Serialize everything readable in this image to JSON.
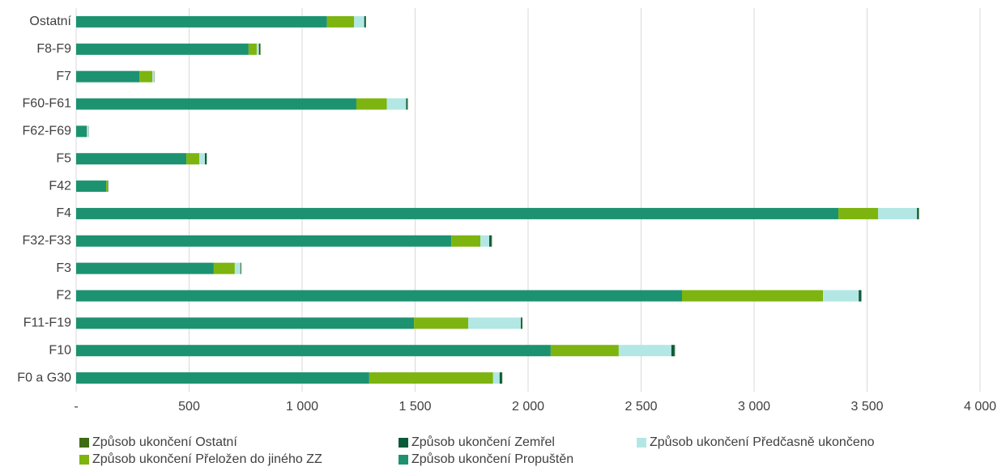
{
  "chart_data": {
    "type": "bar",
    "orientation": "horizontal",
    "stacked": true,
    "categories": [
      "Ostatní",
      "F8-F9",
      "F7",
      "F60-F61",
      "F62-F69",
      "F5",
      "F42",
      "F4",
      "F32-F33",
      "F3",
      "F2",
      "F11-F19",
      "F10",
      "F0 a G30"
    ],
    "series": [
      {
        "name": "Způsob ukončení Propuštěn",
        "color": "#1c9270",
        "values": [
          1110,
          763,
          280,
          1240,
          47,
          488,
          133,
          3373,
          1660,
          609,
          2681,
          1495,
          2100,
          1297
        ]
      },
      {
        "name": "Způsob ukončení Přeložen do jiného ZZ",
        "color": "#7db40f",
        "values": [
          120,
          36,
          57,
          135,
          1,
          57,
          7,
          176,
          129,
          93,
          624,
          240,
          301,
          548
        ]
      },
      {
        "name": "Způsob ukončení Předčasně ukončeno",
        "color": "#b2e7e4",
        "values": [
          45,
          10,
          7,
          85,
          6,
          25,
          1,
          172,
          39,
          25,
          158,
          233,
          233,
          29
        ]
      },
      {
        "name": "Způsob ukončení Zemřel",
        "color": "#0b5a3a",
        "values": [
          5,
          5,
          1,
          5,
          1,
          7,
          1,
          7,
          10,
          2,
          10,
          5,
          14,
          10
        ]
      },
      {
        "name": "Způsob ukončení Ostatní",
        "color": "#3f6b12",
        "values": [
          3,
          2,
          1,
          3,
          0,
          1,
          1,
          2,
          2,
          2,
          2,
          2,
          2,
          2
        ]
      }
    ],
    "xlim": [
      0,
      4000
    ],
    "xticks": [
      {
        "value": 0,
        "label": "-"
      },
      500,
      {
        "value": 1000,
        "label": "1 000"
      },
      {
        "value": 1500,
        "label": "1 500"
      },
      {
        "value": 2000,
        "label": "2 000"
      },
      {
        "value": 2500,
        "label": "2 500"
      },
      {
        "value": 3000,
        "label": "3 000"
      },
      {
        "value": 3500,
        "label": "3 500"
      },
      {
        "value": 4000,
        "label": "4 000"
      }
    ],
    "grid": true,
    "legend": "bottom"
  }
}
